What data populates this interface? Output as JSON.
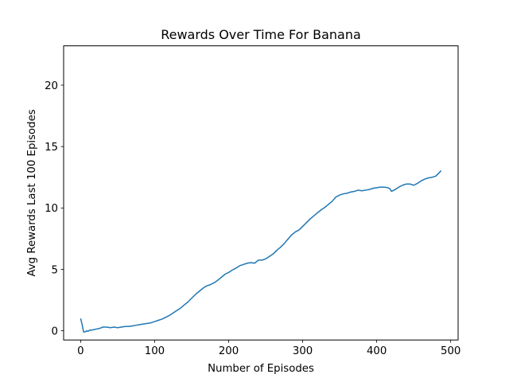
{
  "chart_data": {
    "type": "line",
    "title": "Rewards Over Time For Banana",
    "xlabel": "Number of Episodes",
    "ylabel": "Avg Rewards Last 100 Episodes",
    "xlim": [
      -23,
      510
    ],
    "ylim": [
      -0.75,
      23.2
    ],
    "xticks": [
      0,
      100,
      200,
      300,
      400,
      500
    ],
    "yticks": [
      0,
      5,
      10,
      15,
      20
    ],
    "grid": false,
    "legend": "none",
    "line_color": "#1f77b4",
    "series": [
      {
        "x": [
          0,
          2,
          4,
          6,
          8,
          10,
          12,
          15,
          18,
          22,
          26,
          30,
          35,
          40,
          45,
          50,
          55,
          60,
          65,
          70,
          75,
          80,
          85,
          90,
          95,
          100,
          105,
          110,
          115,
          120,
          125,
          130,
          135,
          140,
          145,
          150,
          155,
          160,
          165,
          170,
          175,
          180,
          185,
          190,
          195,
          200,
          205,
          210,
          215,
          220,
          225,
          230,
          235,
          240,
          245,
          250,
          255,
          260,
          265,
          270,
          275,
          280,
          285,
          290,
          295,
          300,
          305,
          310,
          315,
          320,
          325,
          330,
          335,
          340,
          345,
          350,
          355,
          360,
          365,
          370,
          375,
          380,
          385,
          390,
          395,
          400,
          405,
          410,
          415,
          418,
          420,
          425,
          430,
          435,
          440,
          445,
          450,
          455,
          460,
          465,
          470,
          475,
          480,
          485,
          487
        ],
        "y": [
          1.0,
          0.5,
          -0.1,
          -0.1,
          0.0,
          -0.05,
          0.05,
          0.05,
          0.1,
          0.15,
          0.2,
          0.3,
          0.3,
          0.25,
          0.3,
          0.25,
          0.3,
          0.35,
          0.35,
          0.4,
          0.45,
          0.5,
          0.55,
          0.6,
          0.65,
          0.75,
          0.85,
          0.95,
          1.1,
          1.25,
          1.45,
          1.65,
          1.85,
          2.1,
          2.35,
          2.65,
          2.95,
          3.2,
          3.45,
          3.65,
          3.75,
          3.9,
          4.1,
          4.35,
          4.6,
          4.75,
          4.95,
          5.1,
          5.3,
          5.4,
          5.5,
          5.55,
          5.5,
          5.75,
          5.75,
          5.85,
          6.05,
          6.25,
          6.55,
          6.8,
          7.1,
          7.45,
          7.8,
          8.05,
          8.2,
          8.5,
          8.8,
          9.1,
          9.35,
          9.6,
          9.85,
          10.05,
          10.3,
          10.55,
          10.9,
          11.05,
          11.15,
          11.2,
          11.3,
          11.35,
          11.45,
          11.4,
          11.45,
          11.5,
          11.6,
          11.65,
          11.7,
          11.7,
          11.65,
          11.55,
          11.35,
          11.5,
          11.7,
          11.85,
          11.95,
          11.95,
          11.85,
          12.0,
          12.2,
          12.35,
          12.45,
          12.5,
          12.6,
          12.9,
          13.05
        ]
      }
    ]
  }
}
